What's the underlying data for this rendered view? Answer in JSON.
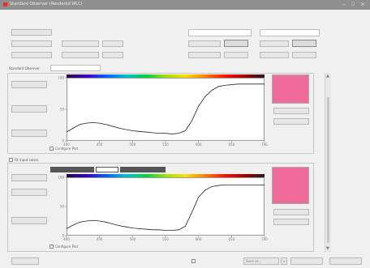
{
  "window": {
    "title": "Standard Observer (Rendered WLC)",
    "controls": [
      "minimize",
      "maximize",
      "close"
    ]
  },
  "top": {
    "left_buttons": [
      "",
      "",
      "",
      ""
    ],
    "middle_label": "",
    "middle_fields": [
      "",
      "",
      "",
      ""
    ],
    "group1_label": "",
    "group1_field": "",
    "group1_small": "",
    "group1_button": "",
    "group1_row2": [
      "",
      ""
    ],
    "group2_label": "",
    "group2_field": "",
    "group2_small": "",
    "group2_button": "",
    "group2_row2": [
      "",
      ""
    ]
  },
  "section1": {
    "label": "Standard Observer",
    "dropdown": "",
    "side_buttons": [
      "",
      "",
      ""
    ],
    "right_buttons": [
      "",
      ""
    ],
    "configure_label": "Configure Plot",
    "swatch_color": "#f06a9a"
  },
  "section2": {
    "label": "Fit input colors",
    "tabs": [
      "",
      "",
      ""
    ],
    "side_buttons": [
      "",
      "",
      ""
    ],
    "right_buttons": [
      "",
      ""
    ],
    "configure_label": "Configure Plot",
    "swatch_color": "#f06a9a"
  },
  "bottom": {
    "left_button": "",
    "checkbox_label": "",
    "save_label": "Save as...",
    "right_buttons": [
      "",
      ""
    ]
  },
  "chart_data": [
    {
      "type": "line",
      "ylabel": "",
      "xlabel": "",
      "xlim": [
        400,
        700
      ],
      "ylim": [
        0,
        100
      ],
      "xticks": [
        "400",
        "450",
        "500",
        "550",
        "600",
        "650",
        "700"
      ],
      "yticks": [
        "0",
        "50",
        "100"
      ],
      "series": [
        {
          "x": [
            400,
            410,
            420,
            430,
            440,
            450,
            460,
            470,
            480,
            490,
            500,
            510,
            520,
            530,
            540,
            550,
            560,
            570,
            580,
            590,
            600,
            610,
            620,
            630,
            640,
            650,
            660,
            670,
            680,
            690,
            700
          ],
          "values": [
            14,
            20,
            26,
            28,
            29,
            28,
            26,
            23,
            20,
            18,
            16,
            15,
            14,
            13,
            12,
            12,
            11,
            12,
            16,
            32,
            55,
            70,
            80,
            86,
            88,
            89,
            90,
            90,
            90,
            90,
            90
          ]
        }
      ]
    },
    {
      "type": "line",
      "ylabel": "",
      "xlabel": "",
      "xlim": [
        400,
        700
      ],
      "ylim": [
        0,
        100
      ],
      "xticks": [
        "400",
        "450",
        "500",
        "550",
        "600",
        "650",
        "700"
      ],
      "yticks": [
        "0",
        "50",
        "100"
      ],
      "series": [
        {
          "x": [
            400,
            410,
            420,
            430,
            440,
            450,
            460,
            470,
            480,
            490,
            500,
            510,
            520,
            530,
            540,
            550,
            560,
            570,
            580,
            590,
            600,
            610,
            620,
            630,
            640,
            650,
            660,
            670,
            680,
            690,
            700
          ],
          "values": [
            12,
            18,
            23,
            25,
            26,
            25,
            23,
            20,
            17,
            15,
            13,
            12,
            11,
            10,
            10,
            9,
            9,
            10,
            16,
            40,
            66,
            78,
            84,
            86,
            87,
            87,
            87,
            87,
            87,
            87,
            87
          ]
        }
      ]
    }
  ]
}
